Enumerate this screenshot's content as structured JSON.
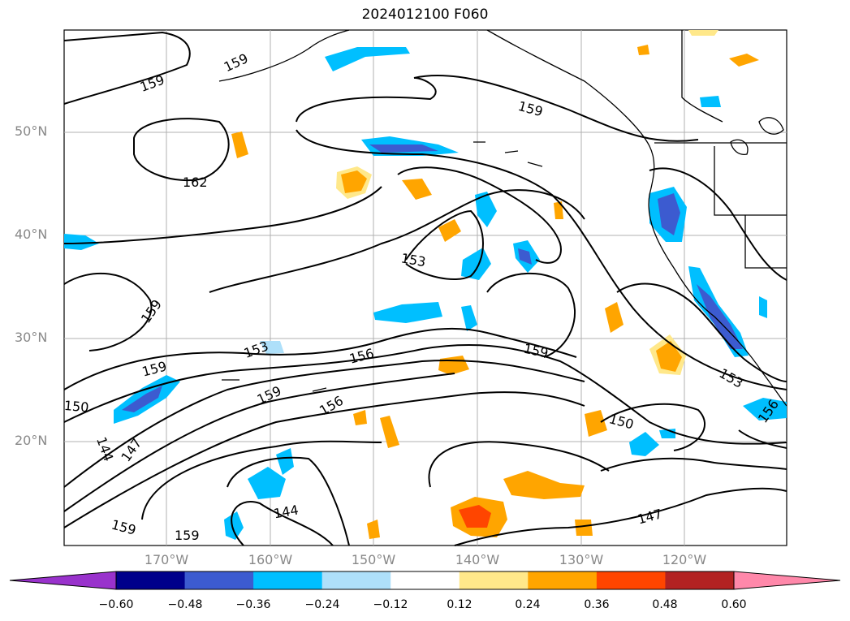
{
  "title": "2024012100 F060",
  "lat_labels": [
    "50°N",
    "40°N",
    "30°N",
    "20°N"
  ],
  "lon_labels": [
    "170°W",
    "160°W",
    "150°W",
    "140°W",
    "130°W",
    "120°W"
  ],
  "contour_labels": [
    "159",
    "159",
    "162",
    "159",
    "153",
    "159",
    "153",
    "156",
    "159",
    "159",
    "159",
    "156",
    "150",
    "147",
    "144",
    "159",
    "159",
    "144",
    "150",
    "153",
    "156",
    "147"
  ],
  "colorbar": {
    "ticks": [
      "−0.60",
      "−0.48",
      "−0.36",
      "−0.24",
      "−0.12",
      "0.12",
      "0.24",
      "0.36",
      "0.48",
      "0.60"
    ],
    "colors": [
      "#9932cc",
      "#00008b",
      "#3c5bd0",
      "#00bfff",
      "#aee0fa",
      "#ffffff",
      "#ffe88a",
      "#ffa500",
      "#ff4500",
      "#b22222",
      "#ff88aa"
    ]
  }
}
